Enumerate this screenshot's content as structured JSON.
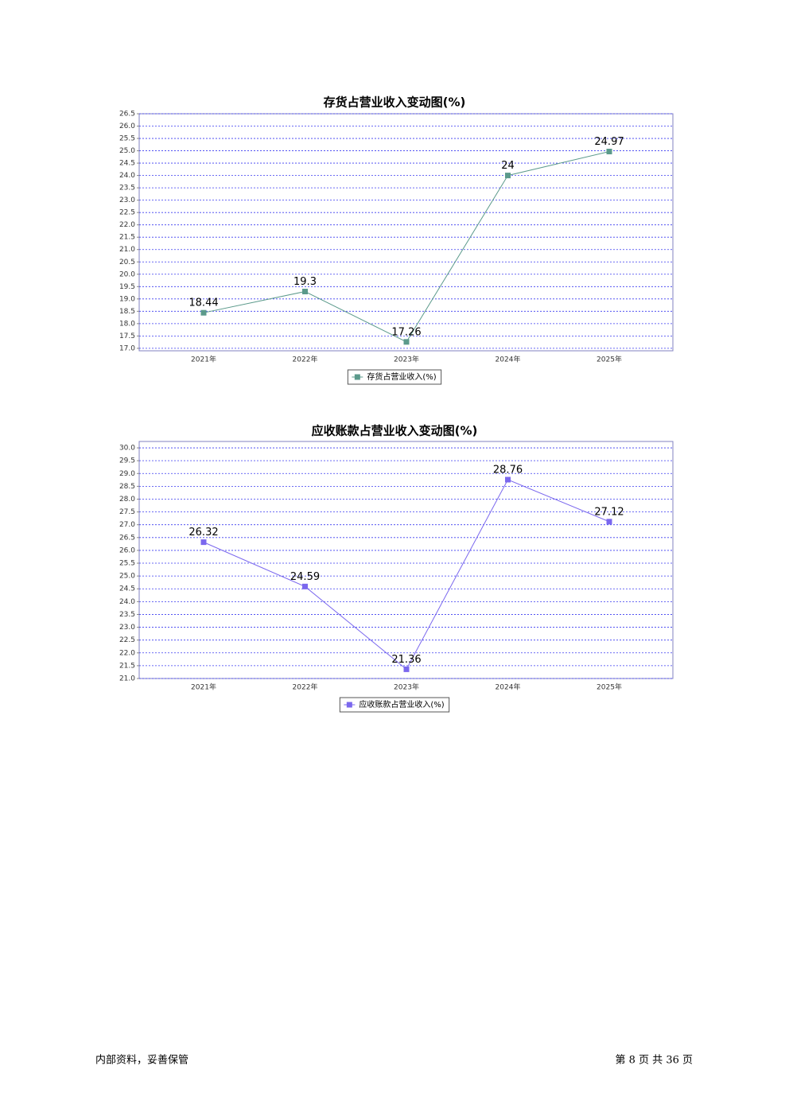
{
  "chart_data": [
    {
      "type": "line",
      "title": "存货占营业收入变动图(%)",
      "categories": [
        "2021年",
        "2022年",
        "2023年",
        "2024年",
        "2025年"
      ],
      "series": [
        {
          "name": "存货占营业收入(%)",
          "color": "#5b9a8b",
          "values": [
            18.44,
            19.3,
            17.26,
            24,
            24.97
          ]
        }
      ],
      "ylim": [
        16.9,
        26.5
      ],
      "yticks": [
        {
          "value": 17,
          "label": "17.0"
        },
        17.5,
        {
          "value": 18,
          "label": "18.0"
        },
        18.5,
        {
          "value": 19,
          "label": "19.0"
        },
        19.5,
        {
          "value": 20,
          "label": "20.0"
        },
        20.5,
        {
          "value": 21,
          "label": "21.0"
        },
        21.5,
        {
          "value": 22,
          "label": "22.0"
        },
        22.5,
        {
          "value": 23,
          "label": "23.0"
        },
        23.5,
        {
          "value": 24,
          "label": "24.0"
        },
        24.5,
        {
          "value": 25,
          "label": "25.0"
        },
        25.5,
        {
          "value": 26,
          "label": "26.0"
        },
        26.5
      ],
      "grid": true
    },
    {
      "type": "line",
      "title": "应收账款占营业收入变动图(%)",
      "categories": [
        "2021年",
        "2022年",
        "2023年",
        "2024年",
        "2025年"
      ],
      "series": [
        {
          "name": "应收账款占营业收入(%)",
          "color": "#7b68ee",
          "values": [
            26.32,
            24.59,
            21.36,
            28.76,
            27.12
          ]
        }
      ],
      "ylim": [
        21,
        30.25
      ],
      "yticks": [
        {
          "value": 21,
          "label": "21.0"
        },
        21.5,
        {
          "value": 22,
          "label": "22.0"
        },
        22.5,
        {
          "value": 23,
          "label": "23.0"
        },
        23.5,
        {
          "value": 24,
          "label": "24.0"
        },
        24.5,
        {
          "value": 25,
          "label": "25.0"
        },
        25.5,
        {
          "value": 26,
          "label": "26.0"
        },
        26.5,
        {
          "value": 27,
          "label": "27.0"
        },
        27.5,
        {
          "value": 28,
          "label": "28.0"
        },
        28.5,
        {
          "value": 29,
          "label": "29.0"
        },
        29.5,
        {
          "value": 30,
          "label": "30.0"
        }
      ],
      "grid": true
    }
  ],
  "footer": {
    "left": "内部资料，妥善保管",
    "right": "第 8 页 共 36 页"
  }
}
